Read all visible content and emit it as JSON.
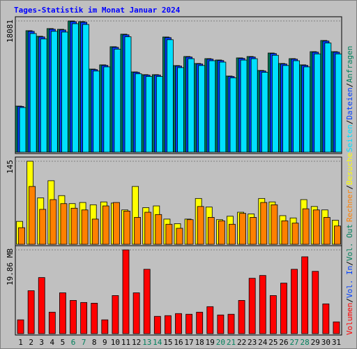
{
  "chart_data": [
    {
      "type": "bar",
      "title": "Tages-Statistik im Monat Januar 2024",
      "ylim": [
        0,
        18081
      ],
      "yticks": [
        18081
      ],
      "series": [
        {
          "name": "Anfragen",
          "color": "#00805c",
          "values": [
            6350,
            16740,
            15970,
            17030,
            16930,
            18081,
            17990,
            11450,
            12030,
            14530,
            16260,
            11060,
            10680,
            10680,
            15870,
            11930,
            13180,
            12220,
            12890,
            12700,
            10490,
            12990,
            13180,
            11260,
            13660,
            12220,
            12890,
            12030,
            13850,
            15390,
            13850
          ]
        },
        {
          "name": "Dateien",
          "color": "#0040ff",
          "values": [
            6300,
            16650,
            15880,
            16940,
            16840,
            17990,
            17900,
            11380,
            11960,
            14450,
            16170,
            11000,
            10620,
            10620,
            15790,
            11860,
            13110,
            12150,
            12820,
            12630,
            10430,
            12920,
            13110,
            11190,
            13590,
            12150,
            12820,
            11960,
            13780,
            15310,
            13780
          ]
        },
        {
          "name": "Seiten",
          "color": "#00e0ff",
          "values": [
            6150,
            16350,
            15600,
            16650,
            16550,
            17700,
            17600,
            11180,
            11750,
            14200,
            15900,
            10800,
            10430,
            10430,
            15500,
            11650,
            12880,
            11940,
            12600,
            12410,
            10240,
            12690,
            12880,
            11000,
            13350,
            11940,
            12600,
            11750,
            13540,
            15040,
            13540
          ]
        }
      ],
      "legend_separator": "/"
    },
    {
      "type": "bar",
      "ylim": [
        0,
        145
      ],
      "yticks": [
        145
      ],
      "series": [
        {
          "name": "Besuche",
          "color": "#ffff00",
          "values": [
            40,
            145,
            81,
            111,
            85,
            71,
            73,
            69,
            74,
            72,
            60,
            101,
            64,
            67,
            44,
            36,
            44,
            80,
            65,
            43,
            49,
            56,
            53,
            80,
            74,
            50,
            46,
            78,
            66,
            60,
            42
          ]
        },
        {
          "name": "Rechner",
          "color": "#ff8000",
          "values": [
            29,
            101,
            61,
            78,
            71,
            63,
            60,
            44,
            67,
            73,
            58,
            47,
            56,
            52,
            35,
            28,
            43,
            66,
            47,
            41,
            35,
            54,
            47,
            73,
            69,
            41,
            37,
            62,
            60,
            47,
            32
          ]
        }
      ],
      "legend_separator": "/"
    },
    {
      "type": "bar",
      "ylim": [
        0,
        19.86
      ],
      "yticks": [
        {
          "value": 19.86,
          "label": "19.86 MB"
        }
      ],
      "series": [
        {
          "name": "Volumen",
          "color": "#ff0000",
          "values": [
            3.28,
            10.18,
            13.3,
            5.09,
            9.68,
            7.88,
            7.39,
            7.22,
            3.28,
            9.03,
            19.86,
            9.68,
            15.26,
            4.1,
            4.27,
            4.76,
            4.6,
            5.09,
            6.4,
            4.43,
            4.6,
            7.88,
            13.13,
            13.79,
            9.03,
            11.98,
            15.26,
            18.22,
            14.77,
            7.06,
            2.79
          ]
        }
      ],
      "legend_extra": [
        {
          "name": "Vol. In",
          "color": "#0040ff"
        },
        {
          "name": "Vol. Out",
          "color": "#00805c"
        }
      ],
      "legend_separator": "/",
      "categories": [
        "1",
        "2",
        "3",
        "4",
        "5",
        "6",
        "7",
        "8",
        "9",
        "10",
        "11",
        "12",
        "13",
        "14",
        "15",
        "16",
        "17",
        "18",
        "19",
        "20",
        "21",
        "22",
        "23",
        "24",
        "25",
        "26",
        "27",
        "28",
        "29",
        "30",
        "31"
      ],
      "category_colors": [
        "#000000",
        "#000000",
        "#000000",
        "#000000",
        "#000000",
        "#00805c",
        "#00805c",
        "#000000",
        "#000000",
        "#000000",
        "#000000",
        "#000000",
        "#00805c",
        "#00805c",
        "#000000",
        "#000000",
        "#000000",
        "#000000",
        "#000000",
        "#00805c",
        "#00805c",
        "#000000",
        "#000000",
        "#000000",
        "#000000",
        "#000000",
        "#00805c",
        "#00805c",
        "#000000",
        "#000000",
        "#000000"
      ]
    }
  ]
}
